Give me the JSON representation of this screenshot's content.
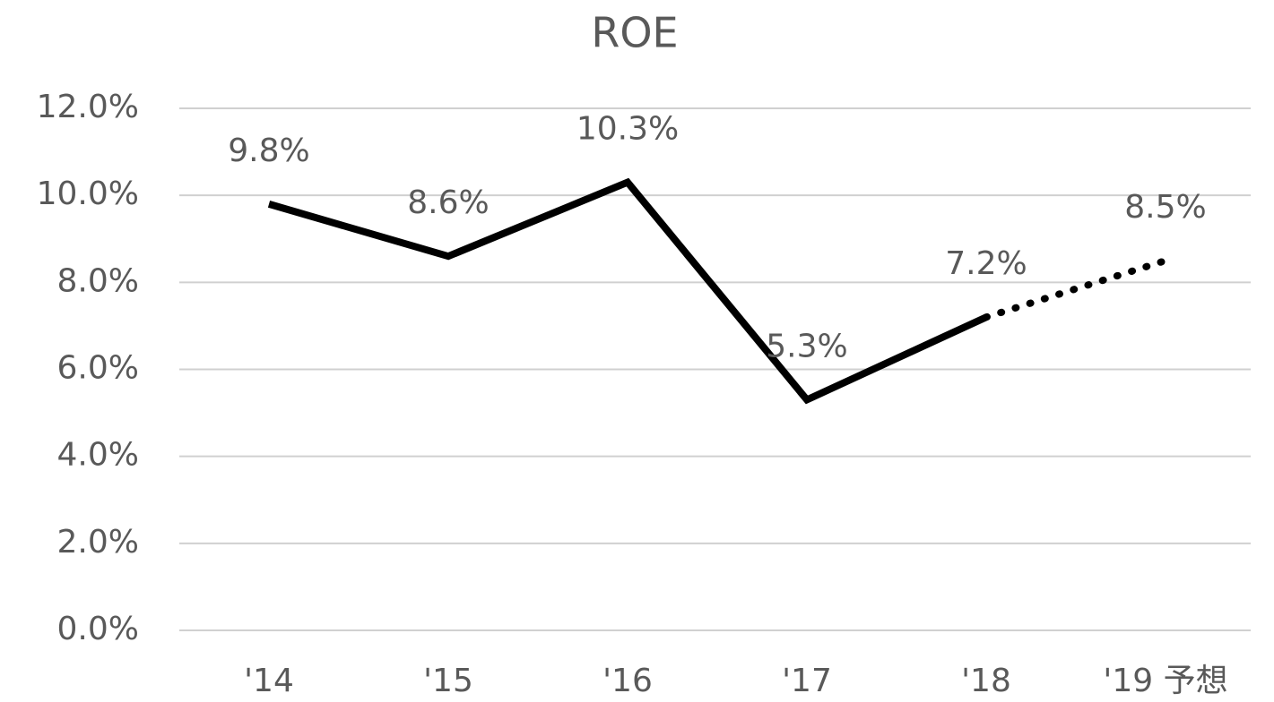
{
  "chart_data": {
    "type": "line",
    "title": "ROE",
    "categories": [
      "'14",
      "'15",
      "'16",
      "'17",
      "'18",
      "'19 予想"
    ],
    "series": [
      {
        "color": "#000000",
        "dash": "solid",
        "values": [
          9.8,
          8.6,
          10.3,
          5.3,
          7.2,
          null
        ],
        "value_labels": [
          "9.8%",
          "8.6%",
          "10.3%",
          "5.3%",
          "7.2%",
          null
        ]
      },
      {
        "color": "#000000",
        "dash": "dotted",
        "values": [
          null,
          null,
          null,
          null,
          7.2,
          8.5
        ],
        "value_labels": [
          null,
          null,
          null,
          null,
          null,
          "8.5%"
        ]
      }
    ],
    "ylim": [
      0,
      12
    ],
    "yticks": [
      {
        "value": 0,
        "label": "0.0%"
      },
      {
        "value": 2,
        "label": "2.0%"
      },
      {
        "value": 4,
        "label": "4.0%"
      },
      {
        "value": 6,
        "label": "6.0%"
      },
      {
        "value": 8,
        "label": "8.0%"
      },
      {
        "value": 10,
        "label": "10.0%"
      },
      {
        "value": 12,
        "label": "12.0%"
      }
    ],
    "grid": true
  }
}
